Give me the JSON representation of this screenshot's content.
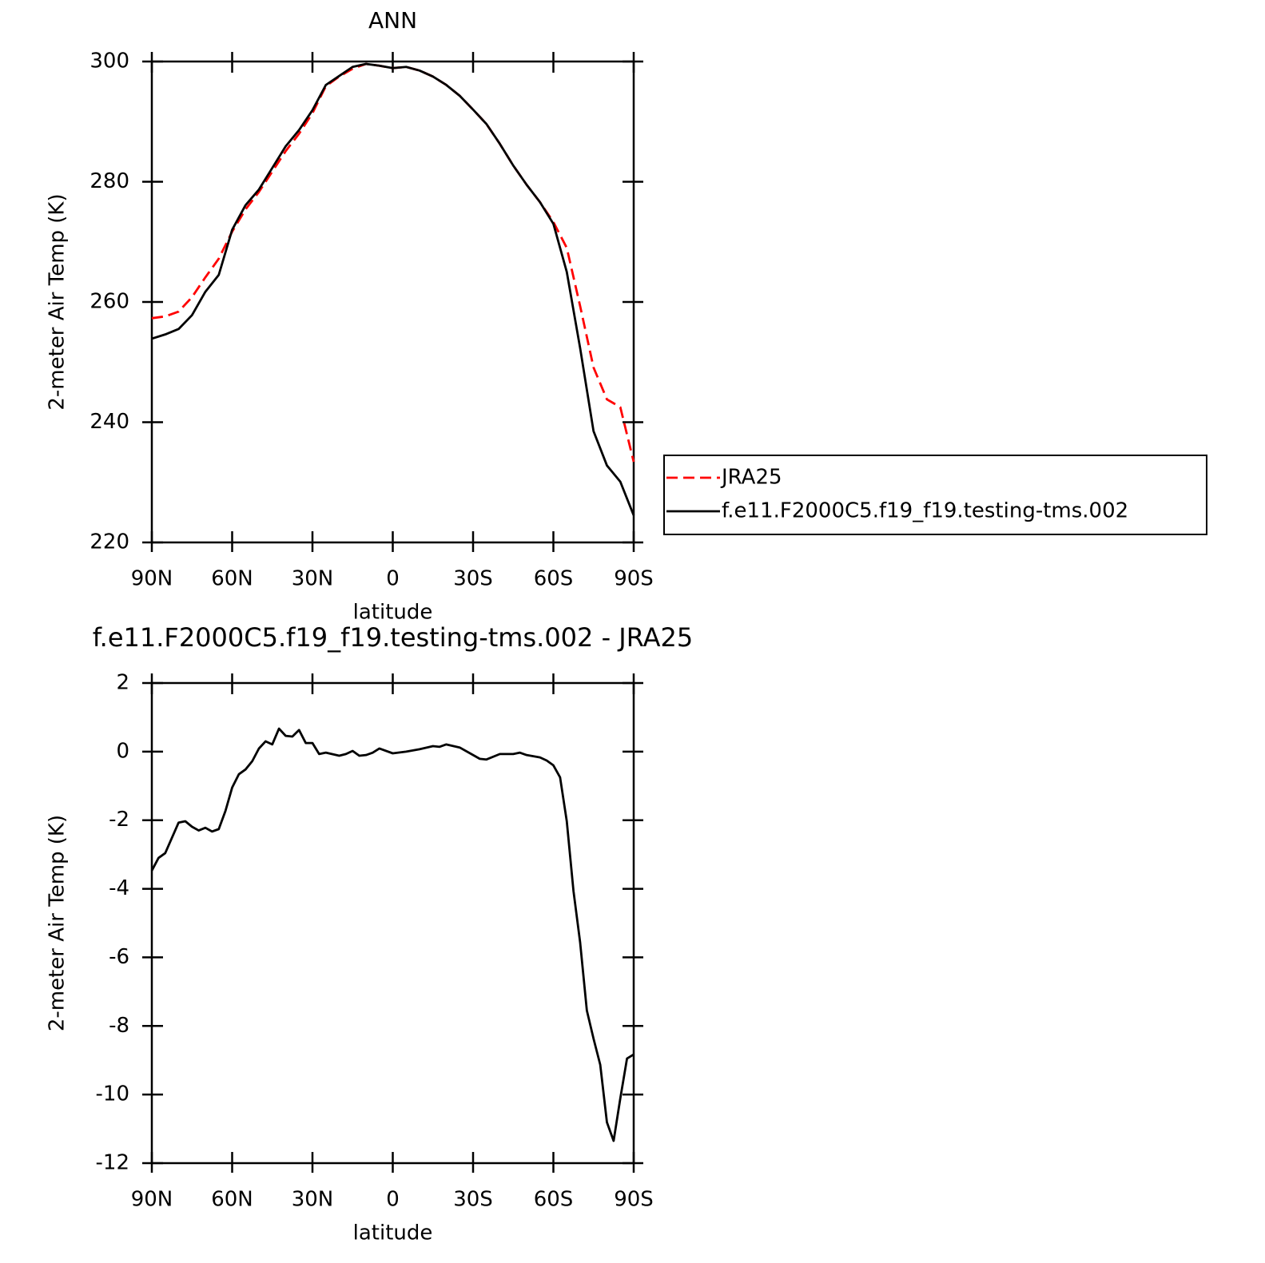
{
  "chart_data": [
    {
      "type": "line",
      "title": "ANN",
      "xlabel": "latitude",
      "ylabel": "2-meter Air Temp (K)",
      "x": [
        90,
        85,
        80,
        75,
        70,
        65,
        60,
        55,
        50,
        45,
        40,
        35,
        30,
        25,
        20,
        15,
        10,
        5,
        0,
        -5,
        -10,
        -15,
        -20,
        -25,
        -30,
        -35,
        -40,
        -45,
        -50,
        -55,
        -60,
        -65,
        -70,
        -75,
        -80,
        -85,
        -90
      ],
      "series": [
        {
          "name": "JRA25",
          "color": "#ff0000",
          "dash": true,
          "values": [
            257.3,
            257.6,
            258.4,
            260.8,
            264.1,
            267.2,
            271.7,
            275.4,
            278.3,
            281.7,
            285.1,
            288.0,
            291.4,
            295.9,
            297.5,
            298.8,
            299.6,
            299.3,
            298.9,
            299.1,
            298.5,
            297.5,
            296.1,
            294.3,
            292.0,
            289.6,
            286.3,
            282.7,
            279.5,
            276.6,
            273.3,
            269.0,
            259.3,
            249.1,
            243.8,
            242.5,
            233.4
          ]
        },
        {
          "name": "f.e11.F2000C5.f19_f19.testing-tms.002",
          "color": "#000000",
          "dash": false,
          "values": [
            253.9,
            254.6,
            255.5,
            257.8,
            261.7,
            264.5,
            272.0,
            276.1,
            278.7,
            282.3,
            285.9,
            288.6,
            291.9,
            296.1,
            297.6,
            299.1,
            299.6,
            299.3,
            298.9,
            299.1,
            298.5,
            297.5,
            296.1,
            294.3,
            292.0,
            289.6,
            286.3,
            282.7,
            279.5,
            276.6,
            273.0,
            265.0,
            252.3,
            238.5,
            232.8,
            230.1,
            224.5
          ]
        }
      ],
      "xlim": [
        90,
        -90
      ],
      "xticks": [
        {
          "value": 90,
          "label": "90N"
        },
        {
          "value": 60,
          "label": "60N"
        },
        {
          "value": 30,
          "label": "30N"
        },
        0,
        {
          "value": -30,
          "label": "30S"
        },
        {
          "value": -60,
          "label": "60S"
        },
        {
          "value": -90,
          "label": "90S"
        }
      ],
      "ylim": [
        220,
        300
      ],
      "yticks": [
        220,
        240,
        260,
        280,
        300
      ],
      "legend": "right"
    },
    {
      "type": "line",
      "title": "f.e11.F2000C5.f19_f19.testing-tms.002 - JRA25",
      "xlabel": "latitude",
      "ylabel": "2-meter Air Temp (K)",
      "x": [
        90,
        87.5,
        85,
        80,
        77.5,
        75,
        72.5,
        70,
        67.5,
        65,
        62.5,
        60,
        57.5,
        55,
        52.5,
        50,
        47.5,
        45,
        42.5,
        40,
        37.5,
        35,
        32.5,
        30,
        27.5,
        25,
        20,
        17.5,
        15,
        12.5,
        10,
        7.5,
        5,
        0,
        -5,
        -10,
        -15,
        -17.5,
        -20,
        -25,
        -30,
        -32.5,
        -35,
        -40,
        -45,
        -47.5,
        -50,
        -55,
        -57.5,
        -60,
        -62.5,
        -65,
        -67.5,
        -70,
        -72.5,
        -75,
        -77.5,
        -80,
        -82.5,
        -85,
        -87.5,
        -90
      ],
      "values": [
        -3.47,
        -3.1,
        -2.96,
        -2.07,
        -2.03,
        -2.19,
        -2.3,
        -2.22,
        -2.33,
        -2.26,
        -1.73,
        -1.05,
        -0.66,
        -0.52,
        -0.28,
        0.09,
        0.3,
        0.21,
        0.67,
        0.46,
        0.44,
        0.63,
        0.25,
        0.25,
        -0.07,
        -0.03,
        -0.12,
        -0.07,
        0.02,
        -0.12,
        -0.1,
        -0.03,
        0.09,
        -0.05,
        0,
        0.07,
        0.16,
        0.14,
        0.21,
        0.12,
        -0.1,
        -0.21,
        -0.23,
        -0.07,
        -0.07,
        -0.03,
        -0.1,
        -0.17,
        -0.26,
        -0.4,
        -0.75,
        -2.03,
        -4.06,
        -5.57,
        -7.55,
        -8.37,
        -9.13,
        -10.81,
        -11.35,
        -10.11,
        -8.95,
        -8.83
      ],
      "color": "#000000",
      "xlim": [
        90,
        -90
      ],
      "xticks": [
        {
          "value": 90,
          "label": "90N"
        },
        {
          "value": 60,
          "label": "60N"
        },
        {
          "value": 30,
          "label": "30N"
        },
        0,
        {
          "value": -30,
          "label": "30S"
        },
        {
          "value": -60,
          "label": "60S"
        },
        {
          "value": -90,
          "label": "90S"
        }
      ],
      "ylim": [
        -12,
        2
      ],
      "yticks": [
        -12,
        -10,
        -8,
        -6,
        -4,
        -2,
        0,
        2
      ]
    }
  ]
}
